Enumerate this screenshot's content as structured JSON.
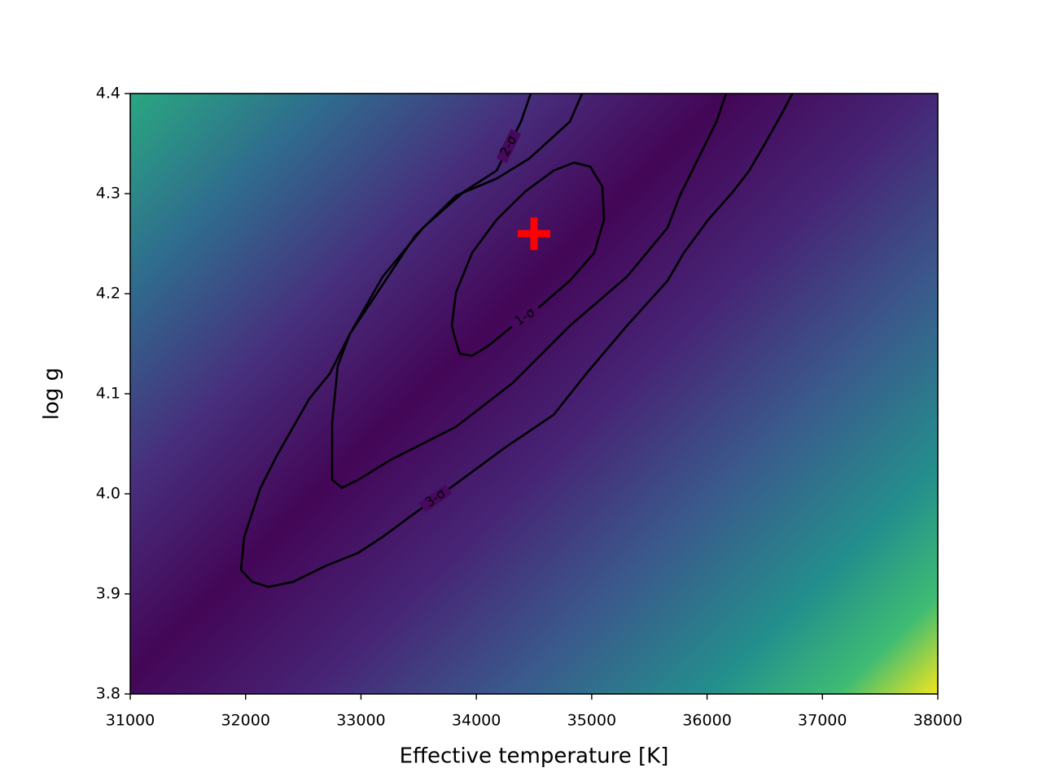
{
  "chart_data": {
    "type": "contour",
    "xlabel": "Effective temperature [K]",
    "ylabel": "log g",
    "xlim": [
      31000,
      38000
    ],
    "ylim": [
      3.8,
      4.4
    ],
    "xticks": [
      31000,
      32000,
      33000,
      34000,
      35000,
      36000,
      37000,
      38000
    ],
    "yticks": [
      3.8,
      3.9,
      {
        "value": 4,
        "label": "4.0"
      },
      4.1,
      4.2,
      4.3,
      4.4
    ],
    "colormap": "viridis",
    "line_color": "#000000",
    "contours": [
      {
        "name": "1-σ",
        "closed": true,
        "x": [
          33823,
          33858,
          33964,
          34105,
          34317,
          34528,
          34811,
          35022,
          35107,
          35093,
          34987,
          34846,
          34670,
          34423,
          34176,
          33964,
          33823,
          33787
        ],
        "y": [
          4.152,
          4.14,
          4.138,
          4.148,
          4.168,
          4.185,
          4.213,
          4.241,
          4.274,
          4.307,
          4.327,
          4.331,
          4.323,
          4.302,
          4.274,
          4.241,
          4.201,
          4.168
        ]
      },
      {
        "name": "2-σ",
        "closed": false,
        "x": [
          34472,
          34387,
          34176,
          33893,
          33540,
          33188,
          32905,
          32799,
          32750,
          32750,
          32835,
          32976,
          33258,
          33823,
          34317,
          34811,
          35305,
          35658,
          35764,
          35940,
          36081,
          36165
        ],
        "y": [
          4.4,
          4.372,
          4.323,
          4.302,
          4.266,
          4.217,
          4.16,
          4.128,
          4.071,
          4.014,
          4.006,
          4.014,
          4.034,
          4.067,
          4.111,
          4.168,
          4.217,
          4.266,
          4.298,
          4.339,
          4.372,
          4.4
        ]
      },
      {
        "name": "3-σ",
        "closed": false,
        "x": [
          34917,
          34811,
          34458,
          34176,
          33823,
          33470,
          33188,
          32905,
          32729,
          32552,
          32270,
          32129,
          31988,
          31960,
          32058,
          32199,
          32411,
          32694,
          32976,
          33188,
          33470,
          33823,
          34246,
          34670,
          34952,
          35305,
          35658,
          35799,
          36011,
          36225,
          36366,
          36507,
          36648,
          36740
        ],
        "y": [
          4.4,
          4.372,
          4.335,
          4.315,
          4.298,
          4.258,
          4.209,
          4.16,
          4.12,
          4.095,
          4.038,
          4.006,
          3.957,
          3.924,
          3.912,
          3.907,
          3.912,
          3.928,
          3.941,
          3.957,
          3.981,
          4.01,
          4.046,
          4.079,
          4.12,
          4.168,
          4.213,
          4.241,
          4.274,
          4.302,
          4.323,
          4.351,
          4.38,
          4.4
        ]
      }
    ],
    "best_fit": {
      "x": 34500,
      "y": 4.26,
      "color": "#ff0000"
    }
  }
}
